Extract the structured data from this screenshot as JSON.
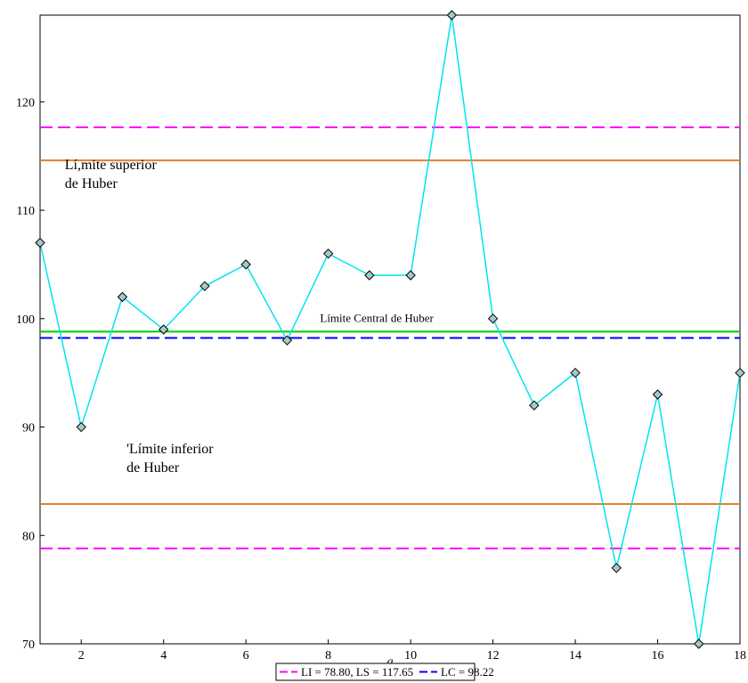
{
  "chart_data": {
    "type": "line",
    "xlabel": "g",
    "xlim": [
      1,
      18
    ],
    "ylim": [
      70,
      128
    ],
    "x_ticks": [
      2,
      4,
      6,
      8,
      10,
      12,
      14,
      16,
      18
    ],
    "y_ticks": [
      70,
      80,
      90,
      100,
      110,
      120
    ],
    "series": [
      {
        "x": [
          1,
          2,
          3,
          4,
          5,
          6,
          7,
          8,
          9,
          10,
          11,
          12,
          13,
          14,
          15,
          16,
          17,
          18
        ],
        "values": [
          107,
          90,
          102,
          99,
          103,
          105,
          98,
          106,
          104,
          104,
          128,
          100,
          92,
          95,
          77,
          93,
          70,
          95
        ],
        "color": "#00e5ee",
        "marker": "diamond"
      }
    ],
    "hlines": [
      {
        "y": 117.65,
        "color": "#ff00ff",
        "style": "dashed"
      },
      {
        "y": 78.8,
        "color": "#ff00ff",
        "style": "dashed"
      },
      {
        "y": 98.22,
        "color": "#0000ff",
        "style": "dashed"
      },
      {
        "y": 114.6,
        "color": "#e0822a",
        "style": "solid"
      },
      {
        "y": 82.9,
        "color": "#e0822a",
        "style": "solid"
      },
      {
        "y": 98.8,
        "color": "#00cc00",
        "style": "solid"
      }
    ],
    "annotations": [
      {
        "lines": [
          "Lí,mite superior",
          "de Huber"
        ],
        "x": 1.6,
        "y": 113.8
      },
      {
        "lines": [
          "Límite Central de Huber"
        ],
        "x": 7.8,
        "y": 99.7
      },
      {
        "lines": [
          "'Límite inferior",
          "de Huber"
        ],
        "x": 3.1,
        "y": 87.6
      }
    ],
    "legend": {
      "position": "bottom-center",
      "entries": [
        {
          "label": "LI = 78.80, LS = 117.65",
          "color": "#ff00ff",
          "style": "dashed"
        },
        {
          "label": "LC = 98.22",
          "color": "#0000ff",
          "style": "dashed"
        }
      ]
    }
  }
}
